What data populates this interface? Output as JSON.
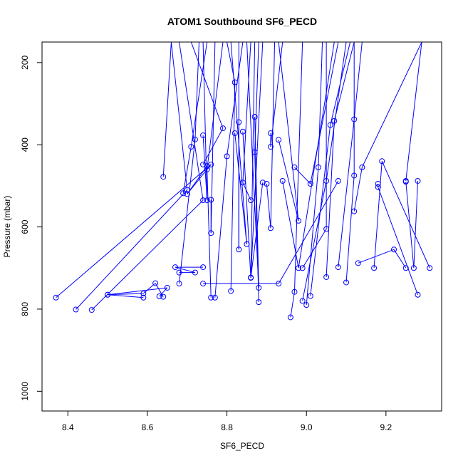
{
  "chart_data": {
    "type": "line",
    "title": "ATOM1 Southbound SF6_PECD",
    "xlabel": "SF6_PECD",
    "ylabel": "Pressure (mbar)",
    "xlim": [
      8.335,
      9.34
    ],
    "ylim": [
      1048,
      150
    ],
    "y_reversed": true,
    "x_ticks": [
      8.4,
      8.6,
      8.8,
      9.0,
      9.2
    ],
    "x_tick_labels": [
      "8.4",
      "8.6",
      "8.8",
      "9.0",
      "9.2"
    ],
    "y_ticks": [
      200,
      400,
      600,
      800,
      1000
    ],
    "y_tick_labels": [
      "200",
      "400",
      "600",
      "800",
      "1000"
    ],
    "grid": false,
    "legend": "none",
    "color": "#0000ff",
    "marker": "open-circle",
    "series": [
      {
        "x": [
          8.37,
          8.76,
          8.7,
          8.75
        ],
        "y": [
          772,
          448,
          520,
          452
        ]
      },
      {
        "x": [
          8.42,
          8.7,
          8.66,
          8.71
        ],
        "y": [
          801,
          510,
          150,
          150
        ]
      },
      {
        "x": [
          8.46,
          8.74,
          8.68,
          8.68
        ],
        "y": [
          802,
          535,
          150,
          150
        ]
      },
      {
        "x": [
          8.5,
          8.59,
          8.62,
          8.64
        ],
        "y": [
          765,
          762,
          737,
          770
        ]
      },
      {
        "x": [
          8.59,
          8.5,
          8.65,
          8.63
        ],
        "y": [
          772,
          765,
          748,
          769
        ]
      },
      {
        "x": [
          8.68,
          8.72,
          8.67,
          8.74
        ],
        "y": [
          711,
          711,
          698,
          698
        ]
      },
      {
        "x": [
          8.64,
          8.66,
          8.7
        ],
        "y": [
          478,
          150,
          150
        ]
      },
      {
        "x": [
          8.69,
          8.71,
          8.75
        ],
        "y": [
          518,
          405,
          150
        ]
      },
      {
        "x": [
          8.68,
          8.72,
          8.73
        ],
        "y": [
          738,
          387,
          150
        ]
      },
      {
        "x": [
          8.74,
          8.75,
          8.74
        ],
        "y": [
          377,
          535,
          150
        ]
      },
      {
        "x": [
          8.74,
          8.79,
          8.71
        ],
        "y": [
          448,
          360,
          150
        ]
      },
      {
        "x": [
          8.76,
          8.76,
          8.77
        ],
        "y": [
          534,
          615,
          150
        ]
      },
      {
        "x": [
          8.76,
          8.75,
          8.79
        ],
        "y": [
          772,
          460,
          150
        ]
      },
      {
        "x": [
          8.77,
          8.8,
          8.84
        ],
        "y": [
          772,
          428,
          150
        ]
      },
      {
        "x": [
          8.81,
          8.82,
          8.8
        ],
        "y": [
          756,
          248,
          150
        ]
      },
      {
        "x": [
          8.82,
          8.85,
          8.81
        ],
        "y": [
          372,
          642,
          150
        ]
      },
      {
        "x": [
          8.83,
          8.83,
          8.83
        ],
        "y": [
          345,
          655,
          150
        ]
      },
      {
        "x": [
          8.84,
          8.86,
          8.87
        ],
        "y": [
          368,
          723,
          150
        ]
      },
      {
        "x": [
          8.86,
          8.84,
          8.86
        ],
        "y": [
          535,
          492,
          150
        ]
      },
      {
        "x": [
          8.87,
          8.88,
          8.85
        ],
        "y": [
          332,
          748,
          150
        ]
      },
      {
        "x": [
          8.88,
          8.87,
          8.88
        ],
        "y": [
          783,
          418,
          150
        ]
      },
      {
        "x": [
          8.89,
          8.86,
          8.89
        ],
        "y": [
          492,
          724,
          150
        ]
      },
      {
        "x": [
          8.74,
          8.93,
          9.08
        ],
        "y": [
          738,
          738,
          488
        ]
      },
      {
        "x": [
          8.9,
          8.91,
          8.92
        ],
        "y": [
          495,
          603,
          150
        ]
      },
      {
        "x": [
          8.91,
          8.91,
          8.94
        ],
        "y": [
          372,
          405,
          150
        ]
      },
      {
        "x": [
          8.93,
          8.98,
          8.93
        ],
        "y": [
          388,
          585,
          150
        ]
      },
      {
        "x": [
          8.94,
          8.98,
          9.07
        ],
        "y": [
          488,
          700,
          150
        ]
      },
      {
        "x": [
          8.96,
          8.97,
          8.99
        ],
        "y": [
          820,
          758,
          150
        ]
      },
      {
        "x": [
          8.97,
          9.01,
          9.08
        ],
        "y": [
          455,
          495,
          150
        ]
      },
      {
        "x": [
          8.99,
          9.05,
          9.05
        ],
        "y": [
          700,
          605,
          150
        ]
      },
      {
        "x": [
          9.0,
          9.03,
          9.04
        ],
        "y": [
          790,
          455,
          150
        ]
      },
      {
        "x": [
          8.99,
          9.05,
          9.1
        ],
        "y": [
          780,
          488,
          150
        ]
      },
      {
        "x": [
          9.01,
          9.06,
          9.11
        ],
        "y": [
          768,
          352,
          150
        ]
      },
      {
        "x": [
          9.05,
          9.07,
          9.12
        ],
        "y": [
          722,
          342,
          150
        ]
      },
      {
        "x": [
          9.08,
          9.12,
          9.14
        ],
        "y": [
          698,
          338,
          150
        ]
      },
      {
        "x": [
          9.1,
          9.12,
          9.12
        ],
        "y": [
          735,
          475,
          150
        ]
      },
      {
        "x": [
          9.13,
          9.22,
          9.25
        ],
        "y": [
          688,
          655,
          700
        ]
      },
      {
        "x": [
          9.17,
          9.19,
          9.31
        ],
        "y": [
          700,
          440,
          700
        ]
      },
      {
        "x": [
          9.18,
          9.18,
          9.28
        ],
        "y": [
          495,
          503,
          765
        ]
      },
      {
        "x": [
          9.25,
          9.27,
          9.28
        ],
        "y": [
          490,
          700,
          488
        ]
      },
      {
        "x": [
          9.12,
          9.14,
          9.29
        ],
        "y": [
          562,
          455,
          150
        ]
      },
      {
        "x": [
          9.25,
          9.29
        ],
        "y": [
          488,
          150
        ]
      }
    ]
  }
}
